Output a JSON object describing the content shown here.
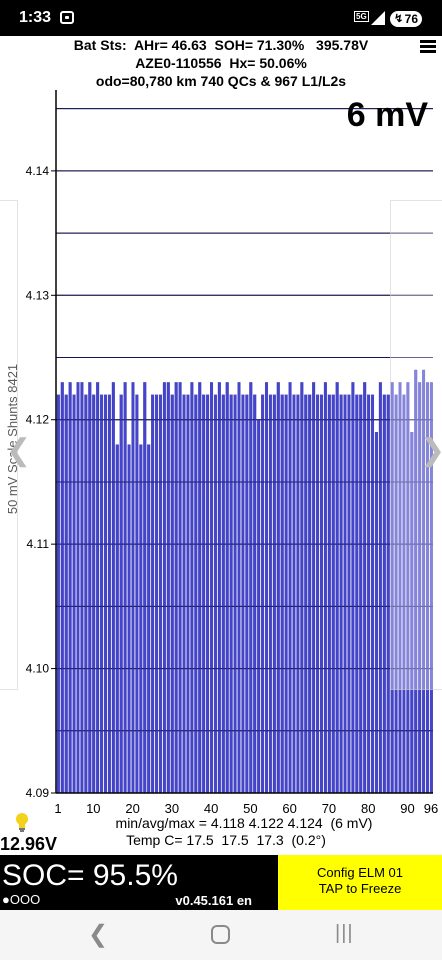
{
  "status": {
    "time": "1:33",
    "network": "5G",
    "battery": "76"
  },
  "header": {
    "line1": "Bat Sts:  AHr= 46.63  SOH= 71.30%   395.78V",
    "line2": "AZE0-110556  Hx= 50.06%",
    "line3": "odo=80,780 km 740 QCs & 967 L1/L2s"
  },
  "icons": {
    "menu": "hamburger-menu-icon",
    "bulb": "lightbulb-icon"
  },
  "colors": {
    "bar": "#4444cc",
    "bar_stroke": "#2a2aa8",
    "soc_bg": "#000000",
    "config_bg": "#ffff00"
  },
  "spread_label": "6 mV",
  "chart_data": {
    "type": "bar",
    "ylabel": "50 mV Scale   Shunts 8421",
    "ylim": [
      4.09,
      4.1465
    ],
    "yticks": [
      4.09,
      4.1,
      4.11,
      4.12,
      4.13,
      4.14
    ],
    "yticklabels": [
      "4.09",
      "4.10",
      "4.11",
      "4.12",
      "4.13",
      "4.14"
    ],
    "xticks": [
      1,
      10,
      20,
      30,
      40,
      50,
      60,
      70,
      80,
      90,
      96
    ],
    "grid": true,
    "x": [
      1,
      2,
      3,
      4,
      5,
      6,
      7,
      8,
      9,
      10,
      11,
      12,
      13,
      14,
      15,
      16,
      17,
      18,
      19,
      20,
      21,
      22,
      23,
      24,
      25,
      26,
      27,
      28,
      29,
      30,
      31,
      32,
      33,
      34,
      35,
      36,
      37,
      38,
      39,
      40,
      41,
      42,
      43,
      44,
      45,
      46,
      47,
      48,
      49,
      50,
      51,
      52,
      53,
      54,
      55,
      56,
      57,
      58,
      59,
      60,
      61,
      62,
      63,
      64,
      65,
      66,
      67,
      68,
      69,
      70,
      71,
      72,
      73,
      74,
      75,
      76,
      77,
      78,
      79,
      80,
      81,
      82,
      83,
      84,
      85,
      86,
      87,
      88,
      89,
      90,
      91,
      92,
      93,
      94,
      95,
      96
    ],
    "values": [
      4.122,
      4.123,
      4.122,
      4.123,
      4.122,
      4.123,
      4.123,
      4.122,
      4.123,
      4.122,
      4.123,
      4.122,
      4.122,
      4.122,
      4.123,
      4.118,
      4.122,
      4.123,
      4.118,
      4.123,
      4.122,
      4.118,
      4.123,
      4.118,
      4.122,
      4.122,
      4.122,
      4.123,
      4.123,
      4.122,
      4.123,
      4.123,
      4.122,
      4.122,
      4.123,
      4.122,
      4.123,
      4.122,
      4.122,
      4.123,
      4.122,
      4.123,
      4.122,
      4.123,
      4.122,
      4.122,
      4.123,
      4.122,
      4.122,
      4.123,
      4.122,
      4.12,
      4.122,
      4.123,
      4.122,
      4.122,
      4.123,
      4.122,
      4.122,
      4.123,
      4.122,
      4.122,
      4.123,
      4.122,
      4.122,
      4.123,
      4.122,
      4.122,
      4.123,
      4.122,
      4.122,
      4.123,
      4.122,
      4.122,
      4.122,
      4.123,
      4.122,
      4.122,
      4.123,
      4.122,
      4.122,
      4.119,
      4.123,
      4.122,
      4.122,
      4.123,
      4.122,
      4.123,
      4.122,
      4.123,
      4.119,
      4.124,
      4.123,
      4.124,
      4.123,
      4.123
    ]
  },
  "stats": {
    "minmax": "min/avg/max = 4.118 4.122 4.124  (6 mV)",
    "temp": "Temp C= 17.5  17.5  17.3  (0.2°)"
  },
  "voltage": "12.96V",
  "soc": {
    "text": "SOC= 95.5%",
    "dots": "●OOO",
    "version": "v0.45.161 en"
  },
  "config": {
    "line1": "Config ELM  01",
    "line2": "TAP to Freeze"
  }
}
